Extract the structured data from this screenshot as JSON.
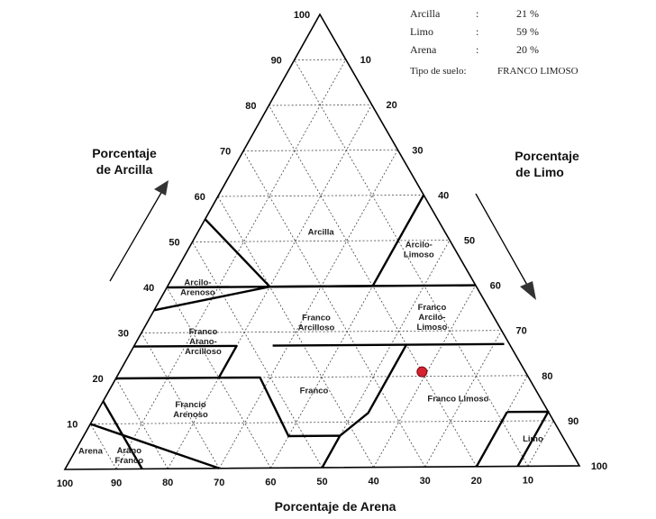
{
  "info": {
    "rows": [
      {
        "label": "Arcilla",
        "sep": ":",
        "value": "21 %"
      },
      {
        "label": "Limo",
        "sep": ":",
        "value": "59 %"
      },
      {
        "label": "Arena",
        "sep": ":",
        "value": "20 %"
      }
    ],
    "soil_type_label": "Tipo de suelo:",
    "soil_type_value": "FRANCO LIMOSO"
  },
  "axes": {
    "clay_title": [
      "Porcentaje",
      "de Arcilla"
    ],
    "silt_title": [
      "Porcentaje",
      "de Limo"
    ],
    "sand_title": "Porcentaje de Arena",
    "clay_ticks": [
      "10",
      "20",
      "30",
      "40",
      "50",
      "60",
      "70",
      "80",
      "90",
      "100"
    ],
    "silt_ticks": [
      "10",
      "20",
      "30",
      "40",
      "50",
      "60",
      "70",
      "80",
      "90",
      "100"
    ],
    "sand_ticks": [
      "100",
      "90",
      "80",
      "70",
      "60",
      "50",
      "40",
      "30",
      "20",
      "10"
    ]
  },
  "regions": [
    {
      "lines": [
        "Arcilla"
      ],
      "clay": 52,
      "silt": 24
    },
    {
      "lines": [
        "Arcilo-",
        "Limoso"
      ],
      "clay": 48,
      "silt": 45
    },
    {
      "lines": [
        "Arcilo-",
        "Arenoso"
      ],
      "clay": 40,
      "silt": 6
    },
    {
      "lines": [
        "Franco",
        "Arcilloso"
      ],
      "clay": 32,
      "silt": 33
    },
    {
      "lines": [
        "Franco",
        "Arcilo-",
        "Limoso"
      ],
      "clay": 33,
      "silt": 55
    },
    {
      "lines": [
        "Franco",
        "Arano-",
        "Arcilloso"
      ],
      "clay": 28,
      "silt": 13
    },
    {
      "lines": [
        "Franco"
      ],
      "clay": 17,
      "silt": 40
    },
    {
      "lines": [
        "Franco Limoso"
      ],
      "clay": 15,
      "silt": 69
    },
    {
      "lines": [
        "Francio",
        "Arenoso"
      ],
      "clay": 13,
      "silt": 18
    },
    {
      "lines": [
        "Limo"
      ],
      "clay": 6,
      "silt": 88
    },
    {
      "lines": [
        "Arena"
      ],
      "clay": 4,
      "silt": 3
    },
    {
      "lines": [
        "Arano",
        "Franco"
      ],
      "clay": 3,
      "silt": 11
    }
  ],
  "sample_point": {
    "clay": 21,
    "silt": 59,
    "sand": 20,
    "color": "#d62230"
  }
}
